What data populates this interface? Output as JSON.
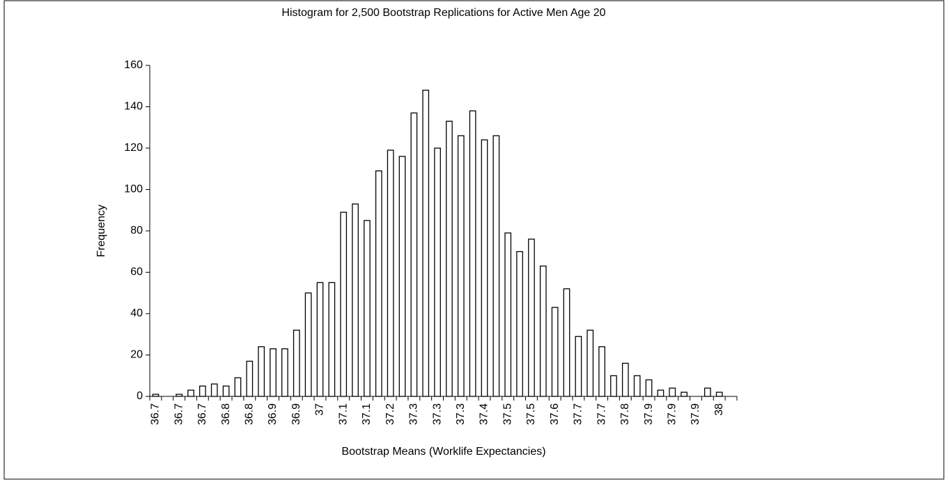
{
  "chart_data": {
    "type": "bar",
    "title": "Histogram for 2,500 Bootstrap Replications for Active Men Age 20",
    "x_label": "Bootstrap Means (Worklife Expectancies)",
    "y_label": "Frequency",
    "categories": [
      "36.7",
      null,
      "36.7",
      null,
      "36.7",
      null,
      "36.8",
      null,
      "36.8",
      null,
      "36.9",
      null,
      "36.9",
      null,
      "37",
      null,
      "37.1",
      null,
      "37.1",
      null,
      "37.2",
      null,
      "37.3",
      null,
      "37.3",
      null,
      "37.3",
      null,
      "37.4",
      null,
      "37.5",
      null,
      "37.5",
      null,
      "37.6",
      null,
      "37.7",
      null,
      "37.7",
      null,
      "37.8",
      null,
      "37.9",
      null,
      "37.9",
      null,
      "37.9",
      null,
      "38",
      null
    ],
    "values": [
      1,
      0,
      1,
      3,
      5,
      6,
      5,
      9,
      17,
      24,
      23,
      23,
      32,
      50,
      55,
      55,
      89,
      93,
      85,
      109,
      119,
      116,
      137,
      148,
      120,
      133,
      126,
      138,
      124,
      126,
      79,
      70,
      76,
      63,
      43,
      52,
      29,
      32,
      24,
      10,
      16,
      10,
      8,
      3,
      4,
      2,
      0,
      4,
      2,
      0
    ],
    "color": "#ffffff",
    "ylim": [
      0,
      160
    ],
    "yticks": [
      0,
      20,
      40,
      60,
      80,
      100,
      120,
      140,
      160
    ],
    "grid": false
  }
}
